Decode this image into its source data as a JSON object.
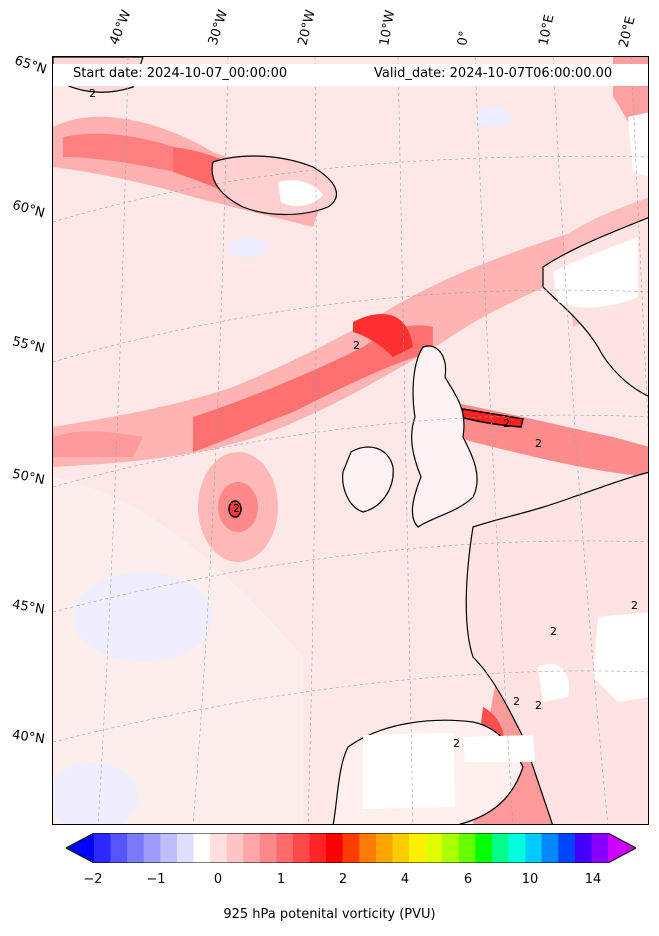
{
  "header": {
    "start_date": "Start date: 2024-10-07_00:00:00",
    "valid_date": "Valid_date: 2024-10-07T06:00:00.00"
  },
  "longitude_labels": [
    "40°W",
    "30°W",
    "20°W",
    "10°W",
    "0°",
    "10°E",
    "20°E"
  ],
  "latitude_labels": [
    "65°N",
    "60°N",
    "55°N",
    "50°N",
    "45°N",
    "40°N"
  ],
  "colorbar": {
    "title": "925 hPa potenital vorticity (PVU)",
    "tick_labels": [
      "−2",
      "−1",
      "0",
      "1",
      "2",
      "4",
      "6",
      "10",
      "14"
    ],
    "colors": [
      "#0000ff",
      "#2a2aff",
      "#5555ff",
      "#7a7aff",
      "#9c9cff",
      "#bdbdff",
      "#dedeff",
      "#ffffff",
      "#ffe0e0",
      "#ffc4c4",
      "#ffa6a6",
      "#ff8888",
      "#ff6a6a",
      "#ff4a4a",
      "#ff2525",
      "#ff0000",
      "#ff3d00",
      "#ff7a00",
      "#ffa500",
      "#ffcc00",
      "#fff000",
      "#ddff00",
      "#aaff00",
      "#66ff00",
      "#00ff00",
      "#00ff88",
      "#00ffdd",
      "#00ccff",
      "#0088ff",
      "#0044ff",
      "#4400ff",
      "#8800ff",
      "#cc00ff"
    ]
  },
  "contour_labels": [
    "2",
    "2",
    "2",
    "2",
    "2",
    "2",
    "2",
    "2",
    "2",
    "2"
  ]
}
